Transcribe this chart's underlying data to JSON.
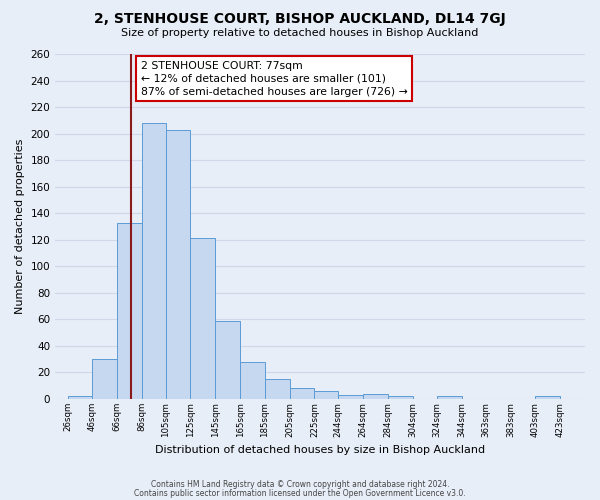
{
  "title": "2, STENHOUSE COURT, BISHOP AUCKLAND, DL14 7GJ",
  "subtitle": "Size of property relative to detached houses in Bishop Auckland",
  "xlabel": "Distribution of detached houses by size in Bishop Auckland",
  "ylabel": "Number of detached properties",
  "bar_left_edges": [
    26,
    46,
    66,
    86,
    105,
    125,
    145,
    165,
    185,
    205,
    225,
    244,
    264,
    284,
    304,
    324,
    344,
    363,
    383,
    403
  ],
  "bar_widths": [
    20,
    20,
    20,
    19,
    20,
    20,
    20,
    20,
    20,
    20,
    19,
    20,
    20,
    20,
    20,
    20,
    19,
    20,
    20,
    20
  ],
  "bar_heights": [
    2,
    30,
    133,
    208,
    203,
    121,
    59,
    28,
    15,
    8,
    6,
    3,
    4,
    2,
    0,
    2,
    0,
    0,
    0,
    2
  ],
  "bar_labels": [
    "26sqm",
    "46sqm",
    "66sqm",
    "86sqm",
    "105sqm",
    "125sqm",
    "145sqm",
    "165sqm",
    "185sqm",
    "205sqm",
    "225sqm",
    "244sqm",
    "264sqm",
    "284sqm",
    "304sqm",
    "324sqm",
    "344sqm",
    "363sqm",
    "383sqm",
    "403sqm",
    "423sqm"
  ],
  "bar_color": "#c5d8f0",
  "bar_edge_color": "#5b9bd5",
  "vline_x": 77,
  "vline_color": "#8b1a1a",
  "annotation_text": "2 STENHOUSE COURT: 77sqm\n← 12% of detached houses are smaller (101)\n87% of semi-detached houses are larger (726) →",
  "annotation_box_facecolor": "#ffffff",
  "annotation_box_edgecolor": "#cc0000",
  "ylim": [
    0,
    260
  ],
  "yticks": [
    0,
    20,
    40,
    60,
    80,
    100,
    120,
    140,
    160,
    180,
    200,
    220,
    240,
    260
  ],
  "xlim_left": 16,
  "xlim_right": 443,
  "background_color": "#e8eef8",
  "grid_color": "#d0d8e8",
  "footer1": "Contains HM Land Registry data © Crown copyright and database right 2024.",
  "footer2": "Contains public sector information licensed under the Open Government Licence v3.0."
}
